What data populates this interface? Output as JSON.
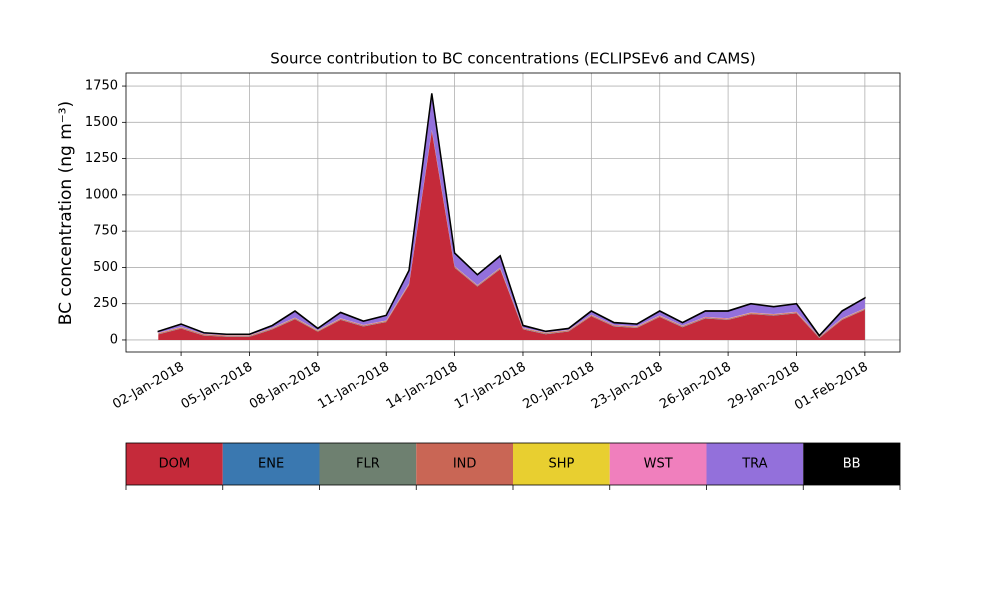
{
  "chart_data": {
    "type": "stacked_area",
    "title": "Source contribution to BC concentrations (ECLIPSEv6 and CAMS)",
    "y_label": "BC concentration (ng m⁻³)",
    "x": [
      "2018-01-01",
      "2018-01-02",
      "2018-01-03",
      "2018-01-04",
      "2018-01-05",
      "2018-01-06",
      "2018-01-07",
      "2018-01-08",
      "2018-01-09",
      "2018-01-10",
      "2018-01-11",
      "2018-01-12",
      "2018-01-13",
      "2018-01-14",
      "2018-01-15",
      "2018-01-16",
      "2018-01-17",
      "2018-01-18",
      "2018-01-19",
      "2018-01-20",
      "2018-01-21",
      "2018-01-22",
      "2018-01-23",
      "2018-01-24",
      "2018-01-25",
      "2018-01-26",
      "2018-01-27",
      "2018-01-28",
      "2018-01-29",
      "2018-01-30",
      "2018-01-31",
      "2018-02-01"
    ],
    "series": [
      {
        "name": "DOM",
        "color": "#c52a3a",
        "values": [
          38,
          78,
          30,
          22,
          22,
          73,
          143,
          56,
          138,
          93,
          123,
          378,
          1438,
          498,
          368,
          488,
          73,
          40,
          58,
          163,
          93,
          83,
          158,
          88,
          148,
          138,
          178,
          168,
          183,
          13,
          138,
          208
        ]
      },
      {
        "name": "ENE",
        "color": "#3a78b0",
        "values": [
          1,
          1,
          1,
          1,
          1,
          1,
          1,
          1,
          1,
          1,
          1,
          1,
          1,
          1,
          1,
          1,
          1,
          1,
          1,
          1,
          1,
          1,
          1,
          1,
          1,
          1,
          1,
          1,
          1,
          1,
          1,
          1
        ]
      },
      {
        "name": "FLR",
        "color": "#6e8070",
        "values": [
          2,
          2,
          2,
          2,
          2,
          2,
          2,
          2,
          2,
          2,
          2,
          2,
          2,
          2,
          2,
          2,
          2,
          2,
          2,
          2,
          2,
          2,
          2,
          2,
          2,
          2,
          2,
          2,
          2,
          2,
          2,
          2
        ]
      },
      {
        "name": "IND",
        "color": "#c96655",
        "values": [
          5,
          5,
          5,
          5,
          5,
          5,
          5,
          5,
          5,
          5,
          5,
          5,
          5,
          5,
          5,
          5,
          5,
          5,
          5,
          5,
          5,
          5,
          5,
          5,
          5,
          5,
          5,
          5,
          5,
          5,
          5,
          5
        ]
      },
      {
        "name": "SHP",
        "color": "#e8cf30",
        "values": [
          1,
          1,
          1,
          1,
          1,
          1,
          1,
          1,
          1,
          1,
          1,
          1,
          1,
          1,
          1,
          1,
          1,
          1,
          1,
          1,
          1,
          1,
          1,
          1,
          1,
          1,
          1,
          1,
          1,
          1,
          1,
          1
        ]
      },
      {
        "name": "WST",
        "color": "#f07fbd",
        "values": [
          2,
          2,
          2,
          2,
          2,
          2,
          2,
          2,
          2,
          2,
          2,
          2,
          2,
          2,
          2,
          2,
          2,
          2,
          2,
          2,
          2,
          2,
          2,
          2,
          2,
          2,
          2,
          2,
          2,
          2,
          2,
          2
        ]
      },
      {
        "name": "TRA",
        "color": "#9370db",
        "values": [
          10,
          20,
          8,
          6,
          6,
          15,
          45,
          12,
          40,
          25,
          35,
          90,
          250,
          90,
          70,
          80,
          15,
          8,
          10,
          25,
          15,
          15,
          30,
          20,
          40,
          50,
          60,
          50,
          55,
          5,
          50,
          70
        ]
      },
      {
        "name": "BB",
        "color": "#000000",
        "values": [
          1,
          1,
          1,
          1,
          1,
          1,
          1,
          1,
          1,
          1,
          1,
          1,
          1,
          1,
          1,
          1,
          1,
          1,
          1,
          1,
          1,
          1,
          1,
          1,
          1,
          1,
          1,
          1,
          1,
          1,
          1,
          1
        ]
      }
    ],
    "xlim": [
      "2017-12-30T14:00",
      "2018-02-02T13:00"
    ],
    "xticks": [
      {
        "value": "2018-01-02",
        "label": "02-Jan-2018"
      },
      {
        "value": "2018-01-05",
        "label": "05-Jan-2018"
      },
      {
        "value": "2018-01-08",
        "label": "08-Jan-2018"
      },
      {
        "value": "2018-01-11",
        "label": "11-Jan-2018"
      },
      {
        "value": "2018-01-14",
        "label": "14-Jan-2018"
      },
      {
        "value": "2018-01-17",
        "label": "17-Jan-2018"
      },
      {
        "value": "2018-01-20",
        "label": "20-Jan-2018"
      },
      {
        "value": "2018-01-23",
        "label": "23-Jan-2018"
      },
      {
        "value": "2018-01-26",
        "label": "26-Jan-2018"
      },
      {
        "value": "2018-01-29",
        "label": "29-Jan-2018"
      },
      {
        "value": "2018-02-01",
        "label": "01-Feb-2018"
      }
    ],
    "ylim": [
      -83,
      1840
    ],
    "yticks": [
      0,
      250,
      500,
      750,
      1000,
      1250,
      1500,
      1750
    ],
    "grid": true
  }
}
